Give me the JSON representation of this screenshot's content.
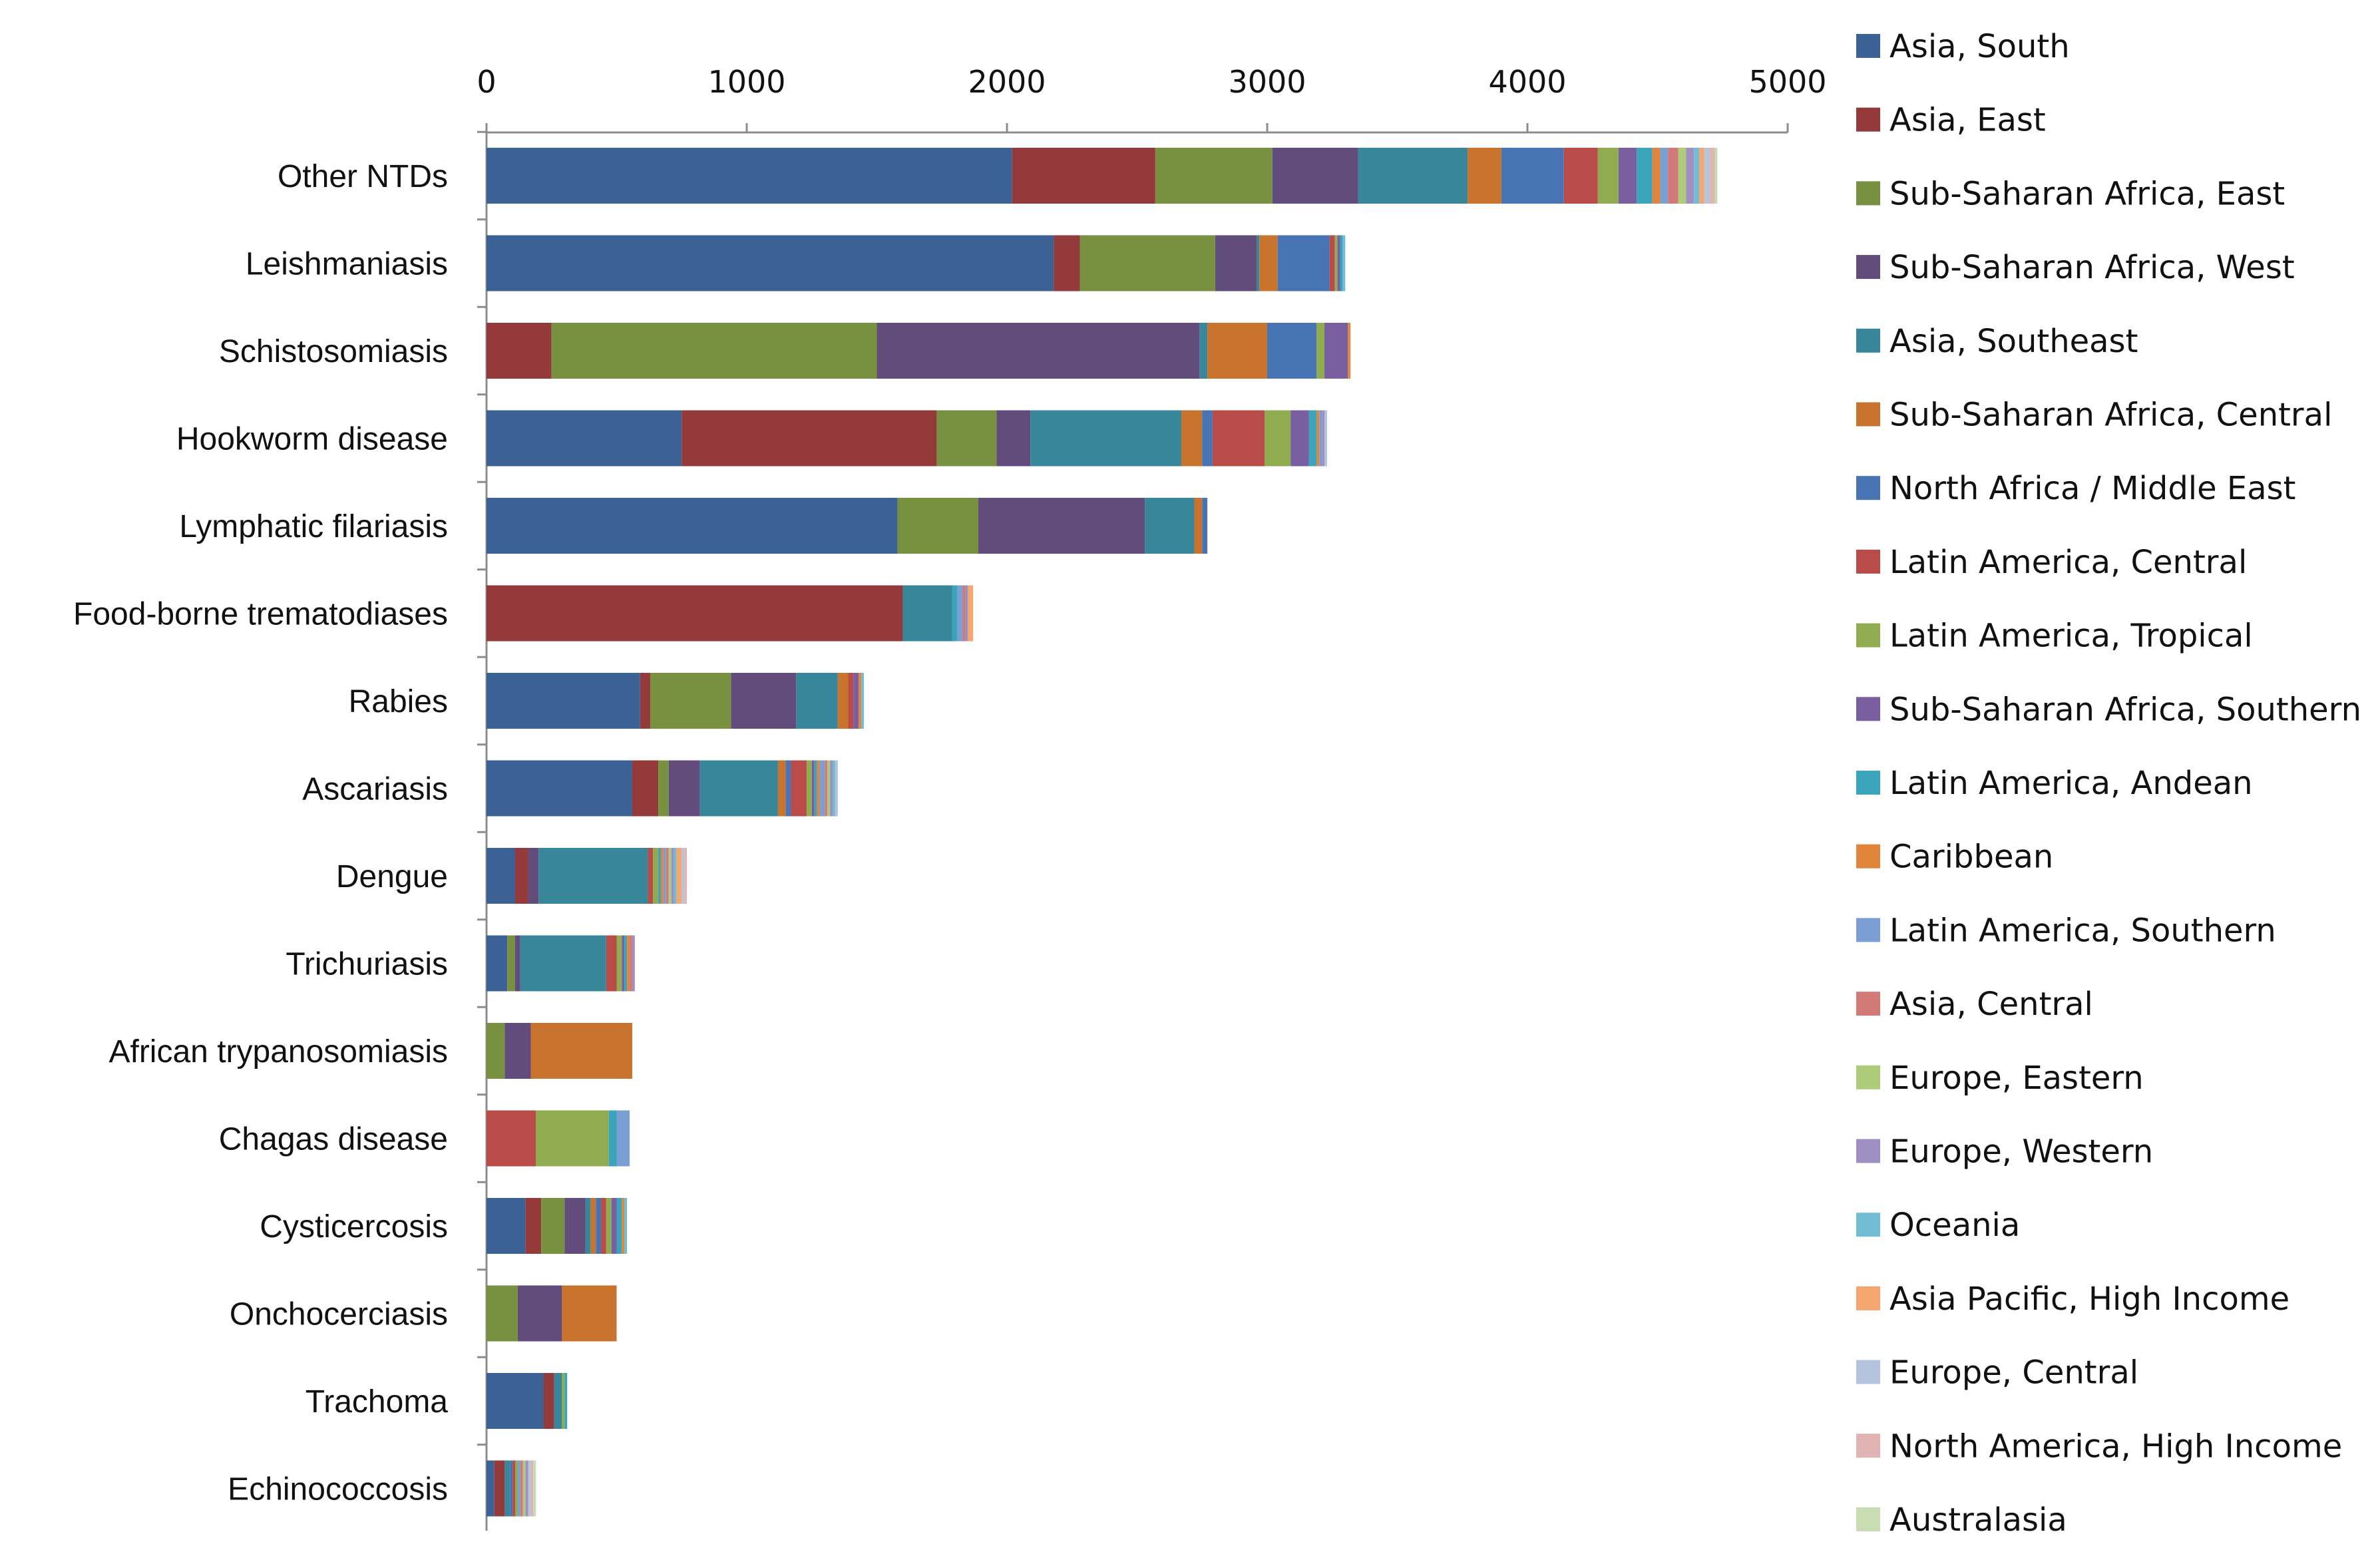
{
  "chart_data": {
    "type": "bar",
    "orientation": "horizontal",
    "stacked": true,
    "title": "",
    "xlabel": "",
    "ylabel": "",
    "xlim": [
      0,
      5000
    ],
    "x_ticks": [
      "0",
      "1000",
      "2000",
      "3000",
      "4000",
      "5000"
    ],
    "x_axis_position": "top",
    "grid": false,
    "legend_position": "right",
    "categories": [
      "Other NTDs",
      "Leishmaniasis",
      "Schistosomiasis",
      "Hookworm disease",
      "Lymphatic filariasis",
      "Food-borne trematodiases",
      "Rabies",
      "Ascariasis",
      "Dengue",
      "Trichuriasis",
      "African trypanosomiasis",
      "Chagas disease",
      "Cysticercosis",
      "Onchocerciasis",
      "Trachoma",
      "Echinococcosis"
    ],
    "series": [
      {
        "name": "Asia, South",
        "color": "#3c6194",
        "values": [
          2020,
          2180,
          0,
          750,
          1580,
          0,
          590,
          560,
          110,
          80,
          0,
          0,
          150,
          0,
          220,
          30
        ]
      },
      {
        "name": "Asia, East",
        "color": "#953a3a",
        "values": [
          550,
          100,
          250,
          980,
          0,
          1600,
          40,
          100,
          50,
          0,
          0,
          0,
          60,
          0,
          40,
          40
        ]
      },
      {
        "name": "Sub-Saharan Africa, East",
        "color": "#779141",
        "values": [
          450,
          520,
          1250,
          230,
          310,
          0,
          310,
          40,
          0,
          30,
          70,
          0,
          90,
          120,
          0,
          0
        ]
      },
      {
        "name": "Sub-Saharan Africa, West",
        "color": "#624c7c",
        "values": [
          330,
          160,
          1240,
          130,
          640,
          0,
          250,
          120,
          40,
          20,
          100,
          0,
          80,
          170,
          0,
          0
        ]
      },
      {
        "name": "Asia, Southeast",
        "color": "#37869a",
        "values": [
          420,
          10,
          30,
          580,
          190,
          190,
          160,
          300,
          420,
          330,
          0,
          0,
          20,
          0,
          30,
          20
        ]
      },
      {
        "name": "Sub-Saharan Africa, Central",
        "color": "#c8742e",
        "values": [
          130,
          70,
          230,
          80,
          30,
          0,
          40,
          30,
          0,
          0,
          390,
          0,
          20,
          210,
          0,
          0
        ]
      },
      {
        "name": "North Africa / Middle East",
        "color": "#4874b4",
        "values": [
          240,
          200,
          190,
          40,
          20,
          0,
          0,
          20,
          0,
          0,
          0,
          0,
          20,
          0,
          0,
          10
        ]
      },
      {
        "name": "Latin America, Central",
        "color": "#b94b48",
        "values": [
          130,
          20,
          0,
          200,
          0,
          0,
          20,
          60,
          20,
          40,
          0,
          190,
          20,
          0,
          0,
          10
        ]
      },
      {
        "name": "Latin America, Tropical",
        "color": "#8fac50",
        "values": [
          80,
          10,
          30,
          100,
          0,
          0,
          0,
          20,
          20,
          20,
          0,
          280,
          20,
          0,
          10,
          10
        ]
      },
      {
        "name": "Sub-Saharan Africa, Southern",
        "color": "#7a5fa0",
        "values": [
          70,
          10,
          90,
          70,
          0,
          0,
          20,
          10,
          0,
          10,
          0,
          0,
          20,
          0,
          0,
          0
        ]
      },
      {
        "name": "Latin America, Andean",
        "color": "#3aa4bc",
        "values": [
          60,
          10,
          0,
          30,
          0,
          20,
          0,
          10,
          10,
          10,
          0,
          30,
          20,
          0,
          10,
          0
        ]
      },
      {
        "name": "Caribbean",
        "color": "#e1853a",
        "values": [
          30,
          0,
          10,
          10,
          0,
          0,
          10,
          10,
          10,
          10,
          0,
          0,
          10,
          0,
          0,
          0
        ]
      },
      {
        "name": "Latin America, Southern",
        "color": "#7b9fd2",
        "values": [
          30,
          0,
          0,
          10,
          0,
          20,
          0,
          20,
          10,
          0,
          0,
          50,
          0,
          0,
          0,
          10
        ]
      },
      {
        "name": "Asia, Central",
        "color": "#d17a78",
        "values": [
          40,
          0,
          0,
          0,
          0,
          10,
          0,
          10,
          10,
          10,
          0,
          0,
          0,
          0,
          0,
          10
        ]
      },
      {
        "name": "Europe, Eastern",
        "color": "#aecb7a",
        "values": [
          30,
          0,
          0,
          0,
          0,
          0,
          0,
          10,
          10,
          0,
          0,
          0,
          0,
          0,
          0,
          10
        ]
      },
      {
        "name": "Europe, Western",
        "color": "#9f8fc2",
        "values": [
          30,
          0,
          0,
          10,
          0,
          10,
          0,
          10,
          10,
          10,
          0,
          0,
          0,
          0,
          0,
          10
        ]
      },
      {
        "name": "Oceania",
        "color": "#72bcd4",
        "values": [
          20,
          10,
          0,
          0,
          0,
          0,
          10,
          10,
          10,
          0,
          0,
          0,
          10,
          0,
          0,
          0
        ]
      },
      {
        "name": "Asia Pacific, High Income",
        "color": "#f5a66e",
        "values": [
          20,
          0,
          0,
          0,
          0,
          20,
          0,
          0,
          20,
          0,
          0,
          0,
          0,
          0,
          0,
          0
        ]
      },
      {
        "name": "Europe, Central",
        "color": "#b4c4de",
        "values": [
          20,
          0,
          0,
          10,
          0,
          0,
          0,
          10,
          10,
          0,
          0,
          0,
          0,
          0,
          0,
          10
        ]
      },
      {
        "name": "North America, High Income",
        "color": "#e0b4b2",
        "values": [
          20,
          0,
          0,
          0,
          0,
          0,
          0,
          0,
          10,
          0,
          0,
          0,
          0,
          0,
          0,
          10
        ]
      },
      {
        "name": "Australasia",
        "color": "#c8ddb2",
        "values": [
          10,
          0,
          0,
          0,
          0,
          0,
          0,
          0,
          0,
          0,
          0,
          0,
          0,
          0,
          0,
          10
        ]
      }
    ]
  }
}
